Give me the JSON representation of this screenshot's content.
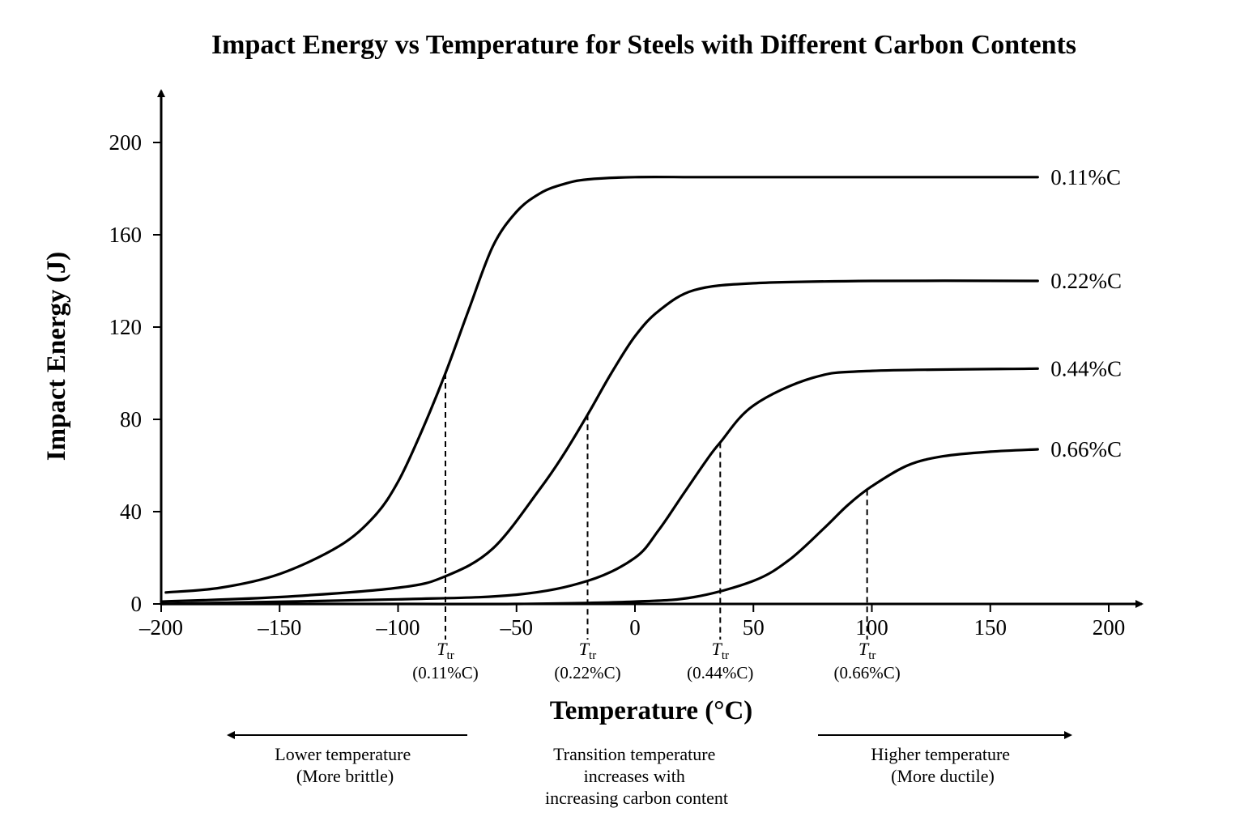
{
  "chart_data": {
    "type": "line",
    "title": "Impact Energy vs Temperature for Steels with Different Carbon Contents",
    "xlabel": "Temperature (°C)",
    "ylabel": "Impact Energy (J)",
    "xlim": [
      -200,
      200
    ],
    "ylim": [
      0,
      200
    ],
    "x_ticks": [
      -200,
      -150,
      -100,
      -50,
      0,
      50,
      100,
      150,
      200
    ],
    "x_tick_labels": [
      "–200",
      "–150",
      "–100",
      "–50",
      "0",
      "50",
      "100",
      "150",
      "200"
    ],
    "y_ticks": [
      0,
      40,
      80,
      120,
      160,
      200
    ],
    "y_tick_labels": [
      "0",
      "40",
      "80",
      "120",
      "160",
      "200"
    ],
    "grid": false,
    "legend": "labels at right end of each curve",
    "series": [
      {
        "name": "0.11%C",
        "x": [
          -198,
          -175,
          -150,
          -125,
          -110,
          -100,
          -90,
          -80,
          -70,
          -60,
          -50,
          -40,
          -30,
          -20,
          0,
          25,
          50,
          100,
          170
        ],
        "y": [
          5,
          7,
          13,
          25,
          38,
          53,
          75,
          100,
          128,
          155,
          170,
          178,
          182,
          184,
          185,
          185,
          185,
          185,
          185
        ],
        "ttr": -80
      },
      {
        "name": "0.22%C",
        "x": [
          -200,
          -150,
          -100,
          -80,
          -60,
          -40,
          -30,
          -20,
          -10,
          0,
          10,
          25,
          50,
          100,
          170
        ],
        "y": [
          1,
          3,
          7,
          12,
          24,
          50,
          65,
          82,
          100,
          116,
          127,
          136,
          139,
          140,
          140
        ],
        "ttr": -20
      },
      {
        "name": "0.44%C",
        "x": [
          -200,
          -100,
          -50,
          -20,
          0,
          10,
          20,
          30,
          36,
          50,
          75,
          100,
          170
        ],
        "y": [
          0,
          2,
          4,
          10,
          20,
          32,
          47,
          62,
          70,
          86,
          98,
          101,
          102
        ],
        "ttr": 36
      },
      {
        "name": "0.66%C",
        "x": [
          -200,
          -100,
          -50,
          0,
          25,
          50,
          65,
          80,
          90,
          100,
          115,
          130,
          150,
          170
        ],
        "y": [
          0,
          0,
          0,
          1,
          3,
          10,
          19,
          33,
          43,
          51,
          60,
          64,
          66,
          67
        ],
        "ttr": 98
      }
    ],
    "annotations": {
      "ttr_symbol": "T",
      "ttr_subscript": "tr",
      "ttr_notes": [
        "(0.11%C)",
        "(0.22%C)",
        "(0.44%C)",
        "(0.66%C)"
      ],
      "left_lines": [
        "Lower temperature",
        "(More brittle)"
      ],
      "center_lines": [
        "Transition temperature",
        "increases with",
        "increasing carbon content"
      ],
      "right_lines": [
        "Higher temperature",
        "(More ductile)"
      ]
    }
  }
}
